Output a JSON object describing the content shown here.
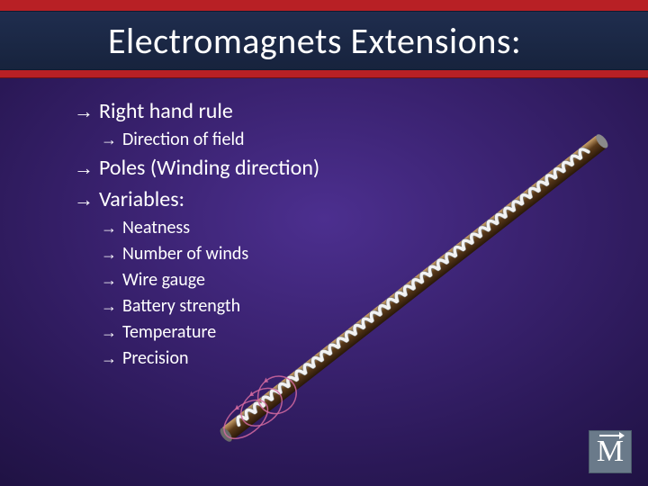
{
  "slide": {
    "title": "Electromagnets Extensions:",
    "bullets": [
      {
        "level": 1,
        "text": "Right hand rule"
      },
      {
        "level": 2,
        "text": "Direction of field"
      },
      {
        "level": 1,
        "text": "Poles (Winding direction)"
      },
      {
        "level": 1,
        "text": "Variables:"
      },
      {
        "level": 2,
        "text": "Neatness"
      },
      {
        "level": 2,
        "text": "Number of winds"
      },
      {
        "level": 2,
        "text": "Wire gauge"
      },
      {
        "level": 2,
        "text": "Battery strength"
      },
      {
        "level": 2,
        "text": "Temperature"
      },
      {
        "level": 2,
        "text": "Precision"
      }
    ],
    "logo_letter": "M"
  },
  "styling": {
    "header_color": "#b82025",
    "title_strip_gradient": [
      "#1f2d4e",
      "#17233d"
    ],
    "background_gradient": [
      "#4c2f8f",
      "#3a2270",
      "#2a1856",
      "#1a0f3a"
    ],
    "title_color": "#ffffff",
    "title_fontsize": 40,
    "body_color": "#ffffff",
    "lvl1_fontsize": 24,
    "lvl2_fontsize": 20,
    "arrow_glyph": "→",
    "logo_bg": "#6a7a8a",
    "logo_text_color": "#ffffff"
  },
  "illustration": {
    "type": "solenoid-rod",
    "angle_deg": -38,
    "rod": {
      "length": 530,
      "radius": 9,
      "color_top": "#c9a06a",
      "color_mid": "#5a3a1a",
      "color_bottom": "#2a1808",
      "endcap_color": "#8a8a8a"
    },
    "coil": {
      "turns": 42,
      "wire_color": "#f2f2f2",
      "wire_shadow": "#8a8a8a",
      "wire_width": 3.5,
      "amplitude": 14
    },
    "field_loops": {
      "count": 3,
      "color": "#d46aa0",
      "stroke_width": 1.5,
      "rx": 28,
      "ry": 16,
      "opacity": 0.85
    }
  }
}
